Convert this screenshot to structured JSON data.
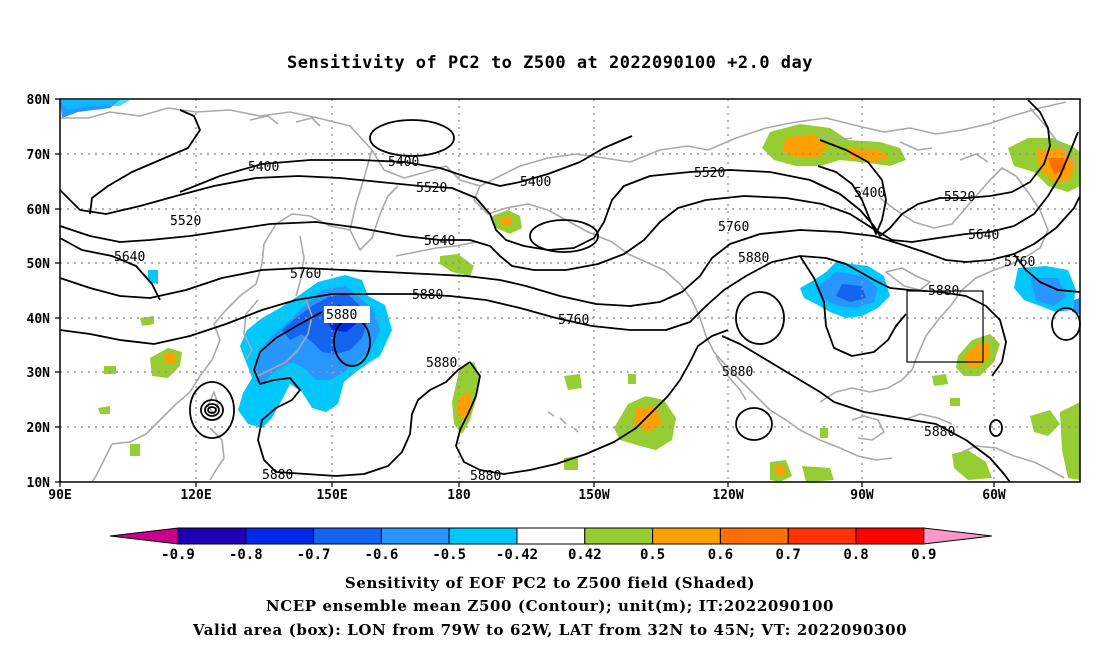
{
  "title": "Sensitivity of PC2 to Z500 at 2022090100 +2.0 day",
  "axes": {
    "y_ticks": [
      "80N",
      "70N",
      "60N",
      "50N",
      "40N",
      "30N",
      "20N",
      "10N"
    ],
    "x_ticks": [
      "90E",
      "120E",
      "150E",
      "180",
      "150W",
      "120W",
      "90W",
      "60W"
    ]
  },
  "contour_labels": [
    "5400",
    "5400",
    "5400",
    "5400",
    "5520",
    "5520",
    "5520",
    "5520",
    "5640",
    "5640",
    "5640",
    "5760",
    "5760",
    "5760",
    "5760",
    "5880",
    "5880",
    "5880",
    "5880",
    "5880",
    "5880",
    "5880",
    "5880",
    "5880"
  ],
  "validation_box": {
    "lon_from": "79W",
    "lon_to": "62W",
    "lat_from": "32N",
    "lat_to": "45N"
  },
  "colorbar": {
    "labels": [
      "-0.9",
      "-0.8",
      "-0.7",
      "-0.6",
      "-0.5",
      "-0.42",
      "0.42",
      "0.5",
      "0.6",
      "0.7",
      "0.8",
      "0.9"
    ],
    "colors": [
      "#c8008c",
      "#1e00b4",
      "#0028e6",
      "#1464f0",
      "#2896ff",
      "#00c8ff",
      "#ffffff",
      "#96cd32",
      "#ffa000",
      "#ff6e00",
      "#ff3200",
      "#ff0000",
      "#ff96c8"
    ]
  },
  "footer": {
    "line1": "Sensitivity of EOF PC2 to Z500 field (Shaded)",
    "line2": "NCEP ensemble mean Z500 (Contour); unit(m); IT:2022090100",
    "line3": "Valid area (box): LON from 79W to 62W, LAT from 32N to 45N; VT: 2022090300"
  },
  "colors": {
    "coastline": "#aaaaaa",
    "contour": "#000000",
    "grid": "#999999"
  }
}
